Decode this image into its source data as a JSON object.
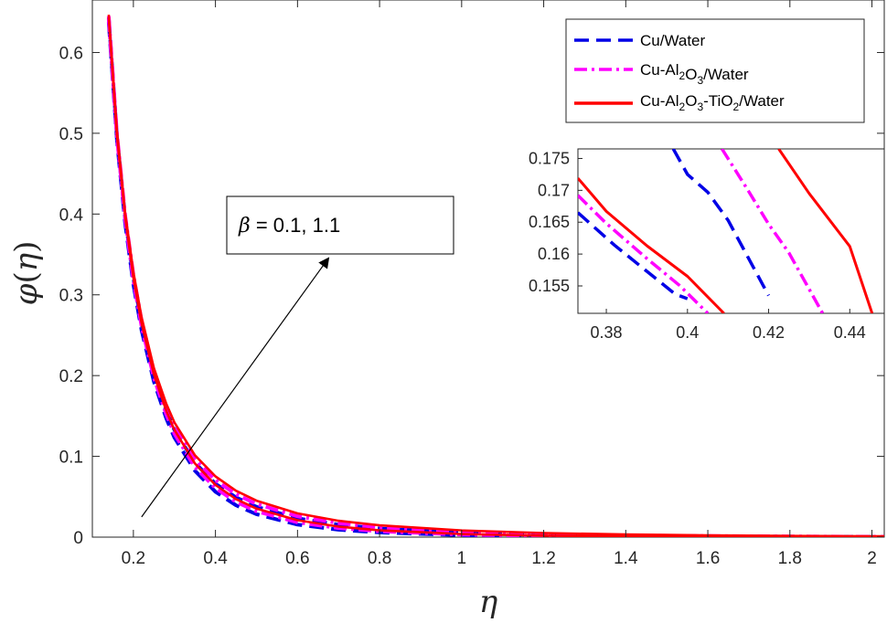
{
  "chart_data": [
    {
      "type": "line",
      "title": "",
      "xlabel": "η",
      "ylabel": "φ(η)",
      "xlim": [
        0.1,
        2.03
      ],
      "ylim": [
        0,
        0.665
      ],
      "xticks": [
        0.2,
        0.4,
        0.6,
        0.8,
        1,
        1.2,
        1.4,
        1.6,
        1.8,
        2
      ],
      "xtick_labels": [
        "0.2",
        "0.4",
        "0.6",
        "0.8",
        "1",
        "1.2",
        "1.4",
        "1.6",
        "1.8",
        "2"
      ],
      "yticks": [
        0,
        0.1,
        0.2,
        0.3,
        0.4,
        0.5,
        0.6
      ],
      "ytick_labels": [
        "0",
        "0.1",
        "0.2",
        "0.3",
        "0.4",
        "0.5",
        "0.6"
      ],
      "grid": false,
      "legend_position": "top-right",
      "x": [
        0.14,
        0.16,
        0.18,
        0.2,
        0.22,
        0.25,
        0.28,
        0.3,
        0.35,
        0.4,
        0.45,
        0.5,
        0.6,
        0.7,
        0.8,
        1.0,
        1.2,
        1.4,
        1.6,
        1.8,
        2.0,
        2.03
      ],
      "series": [
        {
          "name": "Cu/Water",
          "style": "dashed",
          "color": "#0000e6",
          "beta": 0.1,
          "values": [
            0.6375,
            0.491,
            0.388,
            0.3125,
            0.2562,
            0.1925,
            0.147,
            0.1233,
            0.0822,
            0.0562,
            0.0395,
            0.0284,
            0.0155,
            0.0092,
            0.0058,
            0.0024,
            0.0011,
            0.0005,
            0.0002,
            0.0001,
            0.0,
            0.0
          ]
        },
        {
          "name": "Cu/Water",
          "style": "dashed",
          "color": "#0000e6",
          "beta": 1.1,
          "values": [
            0.6427,
            0.496,
            0.3949,
            0.3206,
            0.2643,
            0.2004,
            0.156,
            0.1328,
            0.092,
            0.0662,
            0.0492,
            0.0375,
            0.0233,
            0.0154,
            0.0106,
            0.0055,
            0.0031,
            0.0018,
            0.0011,
            0.0006,
            0.0003,
            0.0003
          ]
        },
        {
          "name": "Cu-Al2O3/Water",
          "style": "dashdot",
          "color": "#ff00ff",
          "beta": 0.1,
          "values": [
            0.6412,
            0.495,
            0.3933,
            0.3175,
            0.2612,
            0.1972,
            0.152,
            0.1281,
            0.0868,
            0.0607,
            0.0436,
            0.032,
            0.0183,
            0.0112,
            0.0072,
            0.0032,
            0.0015,
            0.0007,
            0.0003,
            0.0001,
            0.0,
            0.0
          ]
        },
        {
          "name": "Cu-Al2O3/Water",
          "style": "dashdot",
          "color": "#ff00ff",
          "beta": 1.1,
          "values": [
            0.645,
            0.4994,
            0.3981,
            0.3244,
            0.2684,
            0.2049,
            0.1606,
            0.1374,
            0.0965,
            0.0705,
            0.0531,
            0.041,
            0.0258,
            0.0173,
            0.0121,
            0.0064,
            0.0037,
            0.0022,
            0.0014,
            0.0009,
            0.0005,
            0.0005
          ]
        },
        {
          "name": "Cu-Al2O3-TiO2/Water",
          "style": "solid",
          "color": "#ff0000",
          "beta": 0.1,
          "values": [
            0.6433,
            0.4975,
            0.3966,
            0.321,
            0.2651,
            0.2015,
            0.1565,
            0.1328,
            0.0911,
            0.0647,
            0.0472,
            0.0353,
            0.0209,
            0.013,
            0.0084,
            0.0038,
            0.0018,
            0.0009,
            0.0004,
            0.0002,
            0.0001,
            0.0001
          ]
        },
        {
          "name": "Cu-Al2O3-TiO2/Water",
          "style": "solid",
          "color": "#ff0000",
          "beta": 1.1,
          "values": [
            0.6468,
            0.5031,
            0.4012,
            0.3282,
            0.2723,
            0.2093,
            0.1652,
            0.1421,
            0.1013,
            0.0752,
            0.0575,
            0.0451,
            0.0294,
            0.0203,
            0.0146,
            0.0083,
            0.0051,
            0.0033,
            0.0022,
            0.0015,
            0.001,
            0.001
          ]
        }
      ],
      "legend": [
        "Cu/Water",
        "Cu-Al2O3/Water",
        "Cu-Al2O3-TiO2/Water"
      ],
      "annotation": "β = 0.1, 1.1",
      "arrow_from": [
        0.22,
        0.025
      ],
      "arrow_to": [
        0.675,
        0.345
      ]
    },
    {
      "type": "line",
      "title": "",
      "role": "inset-zoom",
      "xlim": [
        0.373,
        0.4485
      ],
      "ylim": [
        0.1507,
        0.1765
      ],
      "xticks": [
        0.38,
        0.4,
        0.42,
        0.44
      ],
      "xtick_labels": [
        "0.38",
        "0.4",
        "0.42",
        "0.44"
      ],
      "yticks": [
        0.155,
        0.16,
        0.165,
        0.17,
        0.175
      ],
      "ytick_labels": [
        "0.155",
        "0.16",
        "0.165",
        "0.17",
        "0.175"
      ],
      "grid": false,
      "series": [
        {
          "name": "Cu/Water",
          "style": "dashed",
          "color": "#0000e6",
          "x": [
            0.373,
            0.382,
            0.39,
            0.397,
            0.4
          ],
          "values": [
            0.1665,
            0.1614,
            0.1573,
            0.1537,
            0.153
          ]
        },
        {
          "name": "Cu/Water",
          "style": "dashed",
          "color": "#0000e6",
          "x": [
            0.3965,
            0.4,
            0.405,
            0.41,
            0.42
          ],
          "values": [
            0.1765,
            0.1725,
            0.1697,
            0.1653,
            0.1535
          ]
        },
        {
          "name": "Cu-Al2O3/Water",
          "style": "dashdot",
          "color": "#ff00ff",
          "x": [
            0.373,
            0.38,
            0.39,
            0.398,
            0.405
          ],
          "values": [
            0.1692,
            0.1648,
            0.1593,
            0.1551,
            0.1507
          ]
        },
        {
          "name": "Cu-Al2O3/Water",
          "style": "dashdot",
          "color": "#ff00ff",
          "x": [
            0.4085,
            0.415,
            0.42,
            0.425,
            0.4333
          ],
          "values": [
            0.1765,
            0.1699,
            0.1647,
            0.1602,
            0.1507
          ]
        },
        {
          "name": "Cu-Al2O3-TiO2/Water",
          "style": "solid",
          "color": "#ff0000",
          "x": [
            0.373,
            0.38,
            0.39,
            0.4,
            0.409
          ],
          "values": [
            0.1719,
            0.1667,
            0.1613,
            0.1565,
            0.1507
          ]
        },
        {
          "name": "Cu-Al2O3-TiO2/Water",
          "style": "solid",
          "color": "#ff0000",
          "x": [
            0.4225,
            0.43,
            0.44,
            0.4455
          ],
          "values": [
            0.1765,
            0.1695,
            0.1612,
            0.1507
          ]
        }
      ]
    }
  ],
  "legend_labels": {
    "cu_water": "Cu/Water",
    "cu_al2o3_prefix": "Cu-Al",
    "cu_al2o3_suffix": "/Water",
    "hybrid_prefix": "Cu-Al",
    "hybrid_mid": "-TiO",
    "hybrid_suffix": "/Water",
    "sub_2": "2",
    "sub_3": "3"
  },
  "annotation_text": {
    "symbol": "β",
    "rest": " = 0.1, 1.1"
  },
  "axis_labels": {
    "x": "η",
    "y_phi": "φ",
    "y_open": "(",
    "y_eta": "η",
    "y_close": ")"
  }
}
